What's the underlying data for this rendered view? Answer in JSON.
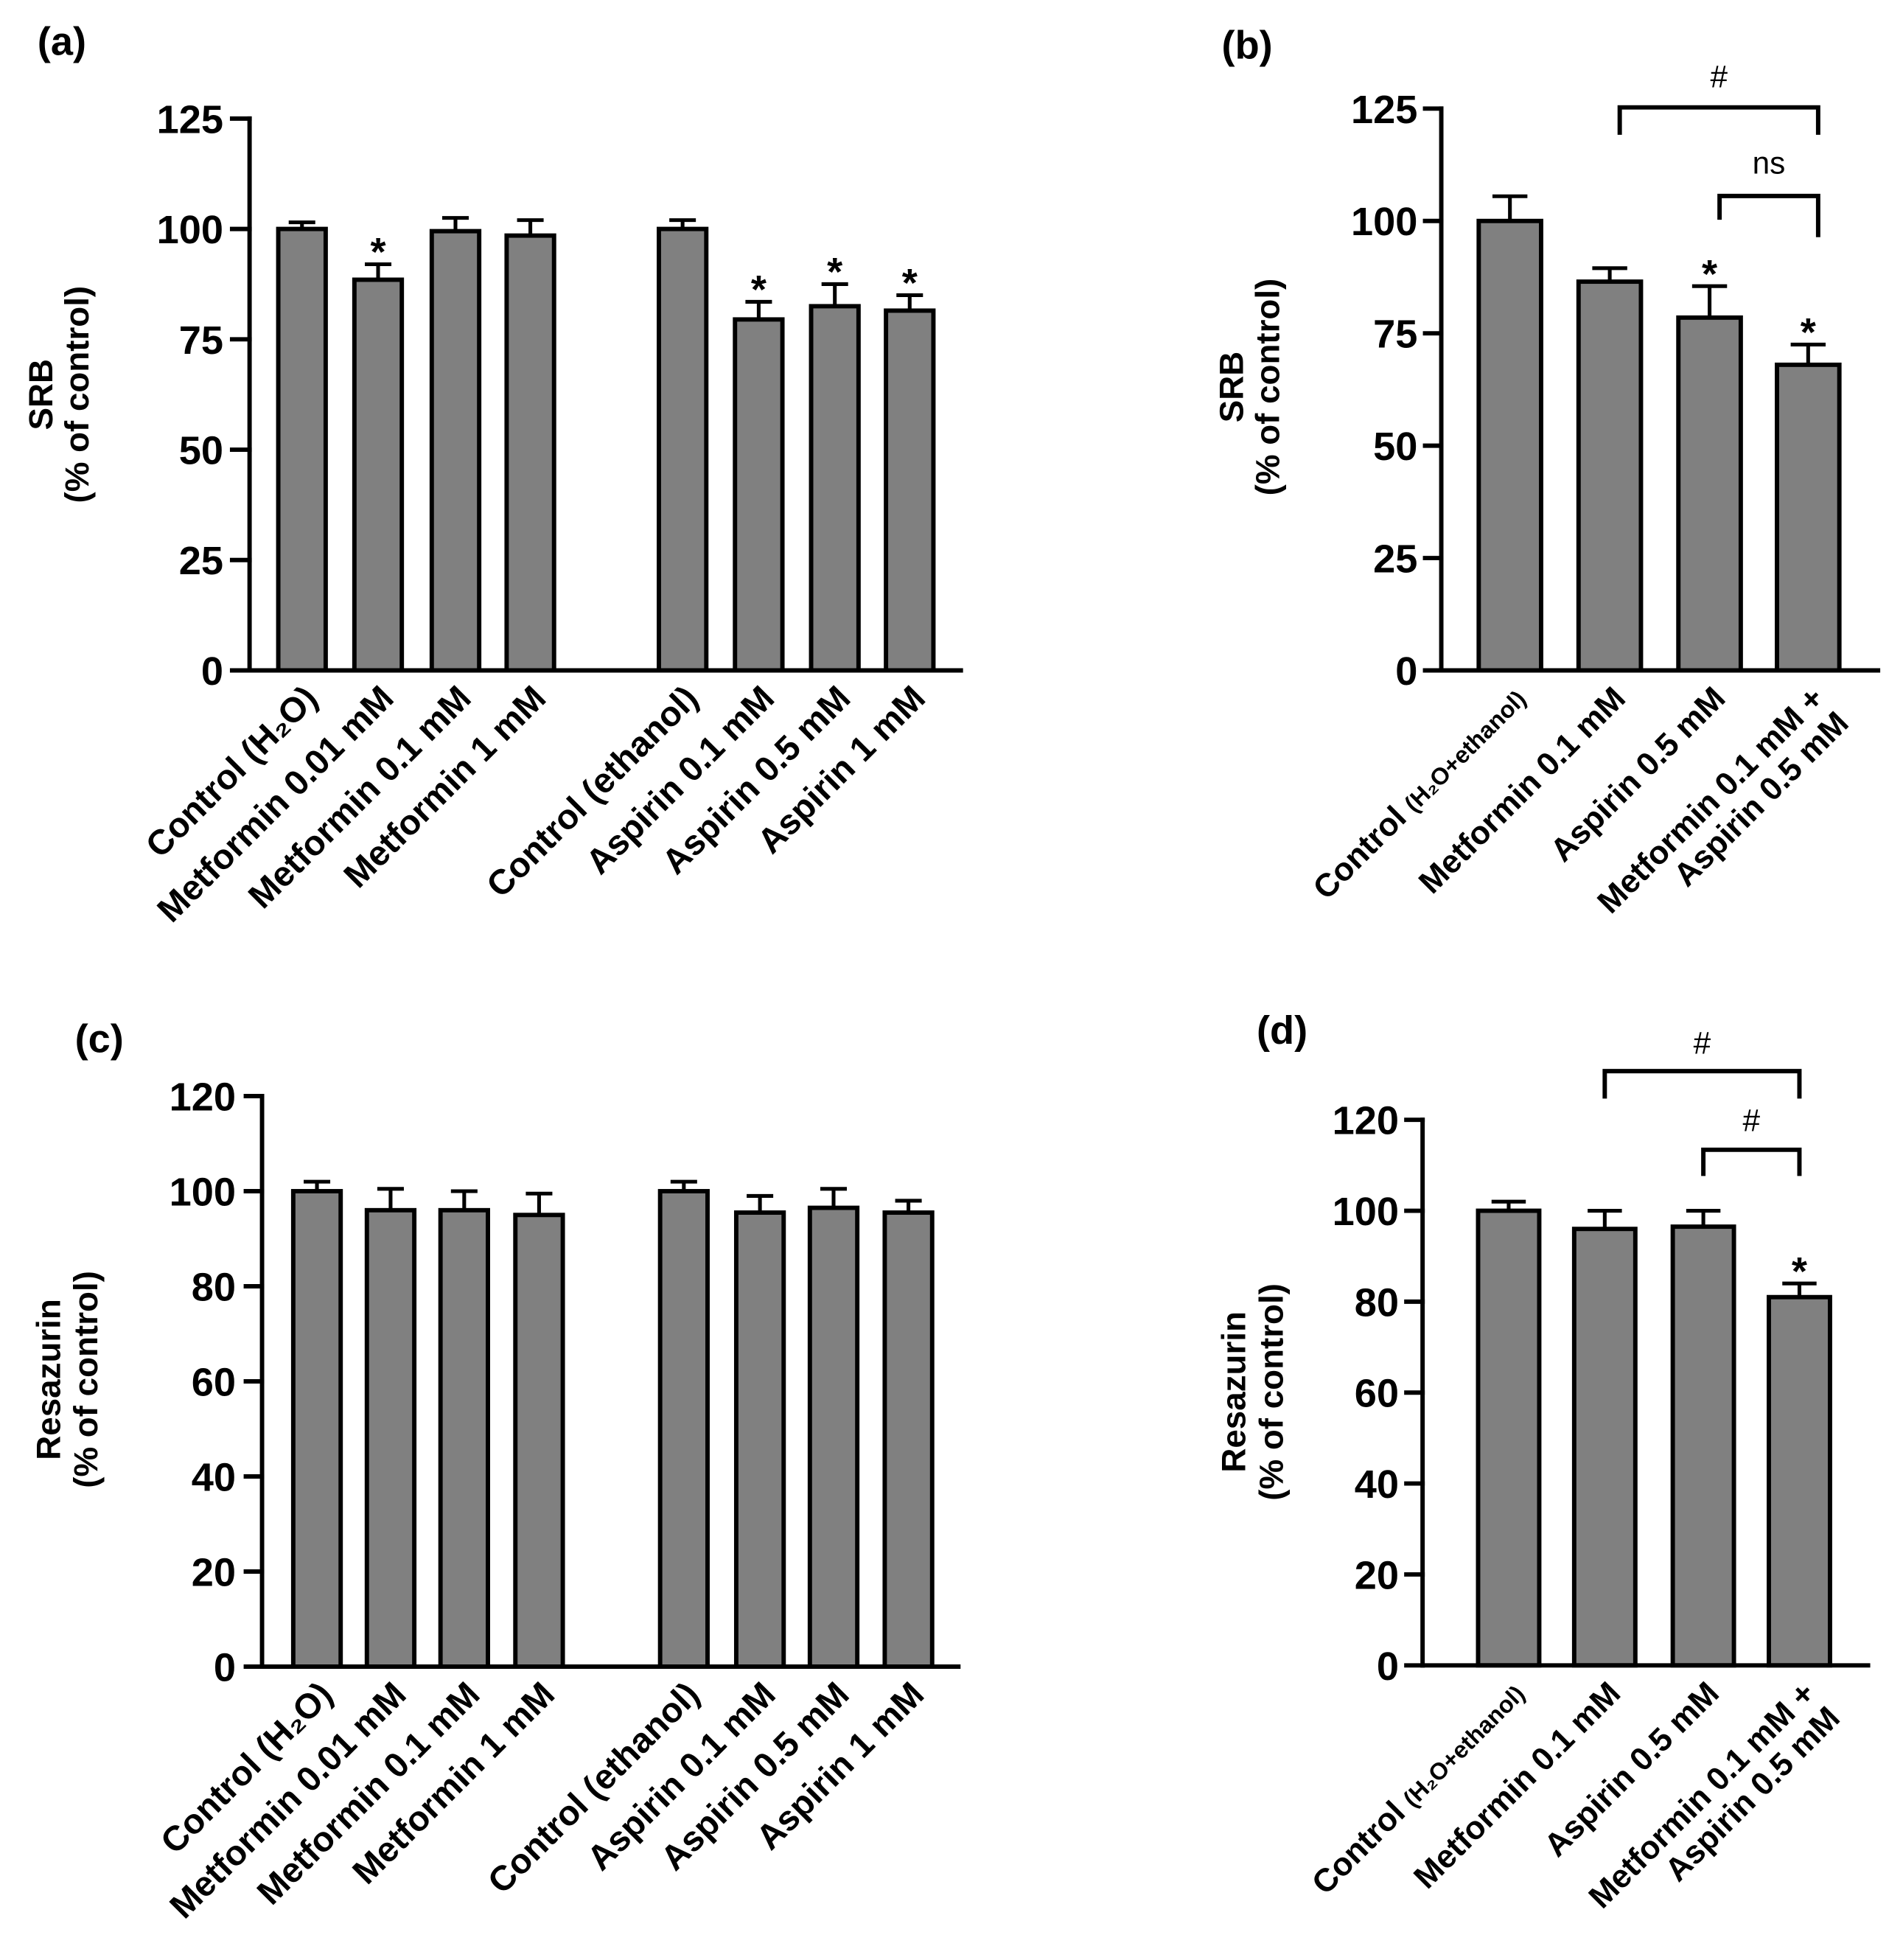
{
  "colors": {
    "bar_fill": "#808080",
    "line": "#000000"
  },
  "chart_data": [
    {
      "panel_label": "(a)",
      "type": "bar",
      "ylabel": [
        "SRB",
        "(% of control)"
      ],
      "ylim": [
        0,
        125
      ],
      "yticks": [
        0,
        25,
        50,
        75,
        100,
        125
      ],
      "categories": [
        "Control (H₂O)",
        "Metformin 0.01 mM",
        "Metformin 0.1 mM",
        "Metformin 1 mM",
        "Control (ethanol)",
        "Aspirin 0.1 mM",
        "Aspirin 0.5 mM",
        "Aspirin 1 mM"
      ],
      "values": [
        100,
        88.5,
        99.5,
        98.5,
        100,
        79.5,
        82.5,
        81.5
      ],
      "errors": [
        1.5,
        3.5,
        3,
        3.5,
        2,
        4,
        5,
        3.5
      ],
      "significance": [
        null,
        "*",
        null,
        null,
        null,
        "*",
        "*",
        "*"
      ],
      "comparisons": []
    },
    {
      "panel_label": "(b)",
      "type": "bar",
      "ylabel": [
        "SRB",
        "(% of control)"
      ],
      "ylim": [
        0,
        125
      ],
      "yticks": [
        0,
        25,
        50,
        75,
        100,
        125
      ],
      "categories": [
        {
          "text": "Control",
          "note": "(H₂O+ethanol)"
        },
        "Metformin 0.1 mM",
        "Aspirin 0.5 mM",
        [
          "Metformin 0.1 mM +",
          "Aspirin 0.5 mM"
        ]
      ],
      "values": [
        100,
        86.5,
        78.5,
        68
      ],
      "errors": [
        5.5,
        3,
        7,
        4.5
      ],
      "significance": [
        null,
        null,
        "*",
        "*"
      ],
      "comparisons": [
        {
          "from": 1,
          "to": 3,
          "label": "#"
        },
        {
          "from": 2,
          "to": 3,
          "label": "ns"
        }
      ]
    },
    {
      "panel_label": "(c)",
      "type": "bar",
      "ylabel": [
        "Resazurin",
        "(% of control)"
      ],
      "ylim": [
        0,
        120
      ],
      "yticks": [
        0,
        20,
        40,
        60,
        80,
        100,
        120
      ],
      "categories": [
        "Control (H₂O)",
        "Metformin 0.01 mM",
        "Metformin 0.1 mM",
        "Metformin 1 mM",
        "Control (ethanol)",
        "Aspirin 0.1 mM",
        "Aspirin 0.5 mM",
        "Aspirin 1 mM"
      ],
      "values": [
        100,
        96,
        96,
        95,
        100,
        95.5,
        96.5,
        95.5
      ],
      "errors": [
        2,
        4.5,
        4,
        4.5,
        2,
        3.5,
        4,
        2.5
      ],
      "significance": [
        null,
        null,
        null,
        null,
        null,
        null,
        null,
        null
      ],
      "comparisons": []
    },
    {
      "panel_label": "(d)",
      "type": "bar",
      "ylabel": [
        "Resazurin",
        "(% of control)"
      ],
      "ylim": [
        0,
        120
      ],
      "yticks": [
        0,
        20,
        40,
        60,
        80,
        100,
        120
      ],
      "categories": [
        {
          "text": "Control",
          "note": "(H₂O+ethanol)"
        },
        "Metformin 0.1 mM",
        "Aspirin 0.5 mM",
        [
          "Metformin 0.1 mM +",
          "Aspirin 0.5 mM"
        ]
      ],
      "values": [
        100,
        96,
        96.5,
        81
      ],
      "errors": [
        2,
        4,
        3.5,
        3
      ],
      "significance": [
        null,
        null,
        null,
        "*"
      ],
      "comparisons": [
        {
          "from": 1,
          "to": 3,
          "label": "#"
        },
        {
          "from": 2,
          "to": 3,
          "label": "#"
        }
      ]
    }
  ]
}
